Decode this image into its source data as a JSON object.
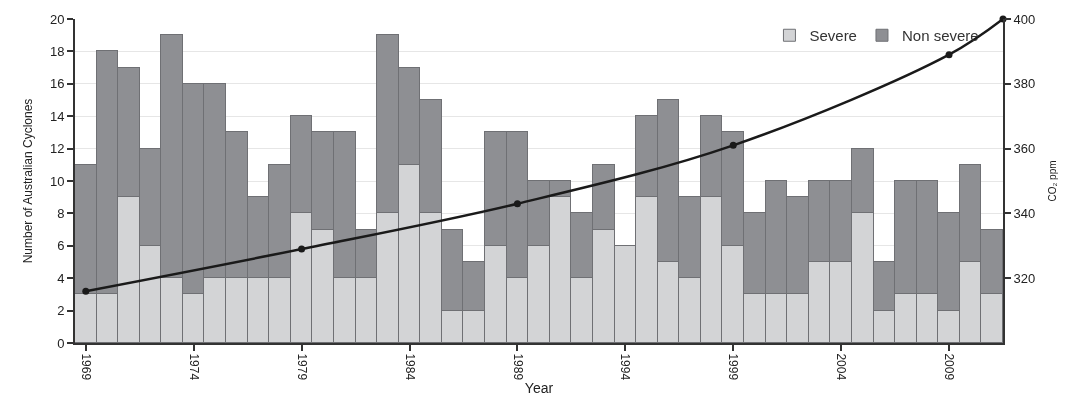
{
  "chart_data": {
    "type": "bar",
    "stacked": true,
    "xlabel": "Year",
    "ylabel": "Number of Australian Cyclones",
    "y2label": "CO₂ ppm",
    "x": [
      1969,
      1970,
      1971,
      1972,
      1973,
      1974,
      1975,
      1976,
      1977,
      1978,
      1979,
      1980,
      1981,
      1982,
      1983,
      1984,
      1985,
      1986,
      1987,
      1988,
      1989,
      1990,
      1991,
      1992,
      1993,
      1994,
      1995,
      1996,
      1997,
      1998,
      1999,
      2000,
      2001,
      2002,
      2003,
      2004,
      2005,
      2006,
      2007,
      2008,
      2009,
      2010,
      2011
    ],
    "xlim": [
      1968.5,
      2011.5
    ],
    "xticks": [
      1969,
      1974,
      1979,
      1984,
      1989,
      1994,
      1999,
      2004,
      2009
    ],
    "ylim": [
      0,
      20
    ],
    "yticks": [
      0,
      2,
      4,
      6,
      8,
      10,
      12,
      14,
      16,
      18,
      20
    ],
    "y2lim": [
      300,
      400
    ],
    "y2ticks": [
      320,
      340,
      360,
      380,
      400
    ],
    "series": [
      {
        "name": "Severe",
        "color": "#d3d4d6",
        "values": [
          3,
          3,
          9,
          6,
          4,
          3,
          4,
          4,
          4,
          4,
          8,
          7,
          4,
          4,
          8,
          11,
          8,
          2,
          2,
          6,
          4,
          6,
          9,
          4,
          7,
          6,
          9,
          5,
          4,
          9,
          6,
          3,
          3,
          3,
          5,
          5,
          8,
          2,
          3,
          3,
          2,
          5,
          3
        ]
      },
      {
        "name": "Non severe",
        "color": "#8e8f93",
        "values": [
          8,
          15,
          8,
          6,
          15,
          13,
          12,
          9,
          5,
          7,
          6,
          6,
          9,
          3,
          11,
          6,
          7,
          5,
          3,
          7,
          9,
          4,
          1,
          4,
          4,
          0,
          5,
          10,
          5,
          5,
          7,
          5,
          7,
          6,
          5,
          5,
          4,
          3,
          7,
          7,
          6,
          6,
          4
        ]
      },
      {
        "type": "line",
        "axis": "y2",
        "color": "#1a1a1a",
        "marker": "circle",
        "x": [
          1969,
          1979,
          1989,
          1999,
          2009,
          2011.5
        ],
        "values": [
          316,
          329,
          343,
          361,
          389,
          400
        ]
      }
    ],
    "grid": "y",
    "legend": "top right"
  }
}
